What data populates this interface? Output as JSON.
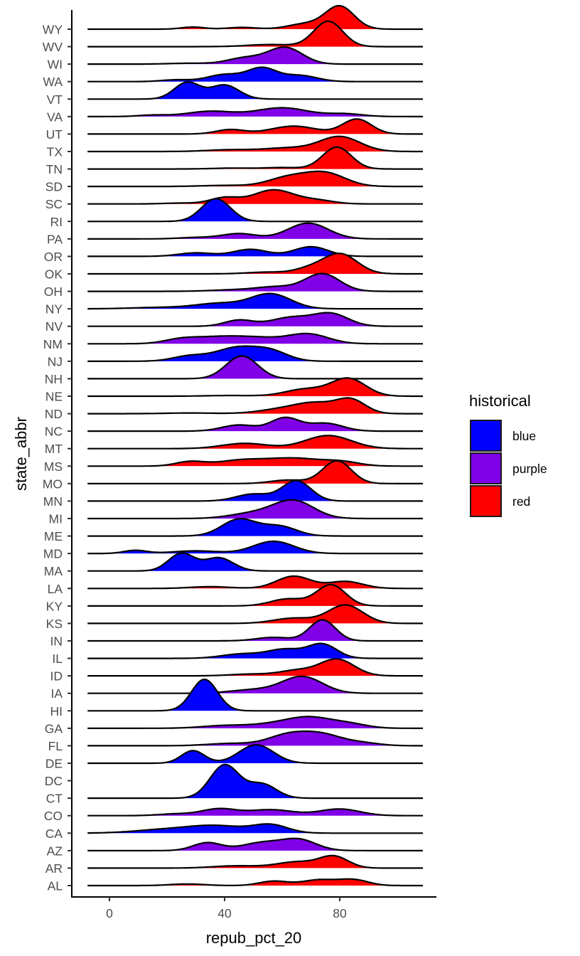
{
  "chart_data": {
    "type": "ridgeline",
    "title": "",
    "xlabel": "repub_pct_20",
    "ylabel": "state_abbr",
    "xlim": [
      -12,
      113
    ],
    "density_range": [
      -7.6,
      108.9
    ],
    "x_ticks": [
      0,
      40,
      80
    ],
    "x_tick_labels": [
      "0",
      "40",
      "80"
    ],
    "grid": false,
    "legend": {
      "title": "historical",
      "position": "right",
      "entries": [
        {
          "label": "blue",
          "color": "#0000FF"
        },
        {
          "label": "purple",
          "color": "#8000E8"
        },
        {
          "label": "red",
          "color": "#FF0000"
        }
      ]
    },
    "categories": [
      "AL",
      "AR",
      "AZ",
      "CA",
      "CO",
      "CT",
      "DC",
      "DE",
      "FL",
      "GA",
      "HI",
      "IA",
      "ID",
      "IL",
      "IN",
      "KS",
      "KY",
      "LA",
      "MA",
      "MD",
      "ME",
      "MI",
      "MN",
      "MO",
      "MS",
      "MT",
      "NC",
      "ND",
      "NE",
      "NH",
      "NJ",
      "NM",
      "NV",
      "NY",
      "OH",
      "OK",
      "OR",
      "PA",
      "RI",
      "SC",
      "SD",
      "TN",
      "TX",
      "UT",
      "VA",
      "VT",
      "WA",
      "WI",
      "WV",
      "WY"
    ],
    "series_note": "Each state's ridge is a density of repub_pct_20, described as a sum of Gaussian components [center, sd, height]; height is in units of one row spacing.",
    "series": [
      {
        "state": "AL",
        "historical": "red",
        "components": [
          [
            27,
            6,
            0.09
          ],
          [
            57,
            5,
            0.25
          ],
          [
            73,
            6,
            0.33
          ],
          [
            85,
            5,
            0.32
          ]
        ]
      },
      {
        "state": "AR",
        "historical": "red",
        "components": [
          [
            44,
            8,
            0.13
          ],
          [
            65,
            7,
            0.35
          ],
          [
            78,
            5,
            0.65
          ]
        ]
      },
      {
        "state": "AZ",
        "historical": "purple",
        "components": [
          [
            34,
            5,
            0.45
          ],
          [
            53,
            7,
            0.45
          ],
          [
            66,
            6,
            0.6
          ]
        ]
      },
      {
        "state": "CA",
        "historical": "blue",
        "components": [
          [
            18,
            10,
            0.18
          ],
          [
            37,
            10,
            0.42
          ],
          [
            56,
            6,
            0.45
          ]
        ]
      },
      {
        "state": "CO",
        "historical": "purple",
        "components": [
          [
            23,
            6,
            0.1
          ],
          [
            38,
            6,
            0.38
          ],
          [
            56,
            8,
            0.34
          ],
          [
            80,
            7,
            0.38
          ]
        ]
      },
      {
        "state": "CT",
        "historical": "blue",
        "components": [
          [
            40,
            5,
            1.9
          ],
          [
            53,
            5,
            0.8
          ]
        ]
      },
      {
        "state": "DC",
        "historical": "blue",
        "components": []
      },
      {
        "state": "DE",
        "historical": "blue",
        "components": [
          [
            29,
            4,
            0.72
          ],
          [
            51,
            6,
            1.05
          ]
        ]
      },
      {
        "state": "FL",
        "historical": "purple",
        "components": [
          [
            42,
            8,
            0.13
          ],
          [
            62,
            7,
            0.6
          ],
          [
            74,
            7,
            0.6
          ],
          [
            88,
            6,
            0.15
          ]
        ]
      },
      {
        "state": "GA",
        "historical": "purple",
        "components": [
          [
            40,
            8,
            0.15
          ],
          [
            57,
            8,
            0.2
          ],
          [
            70,
            8,
            0.6
          ],
          [
            84,
            6,
            0.2
          ]
        ]
      },
      {
        "state": "HI",
        "historical": "blue",
        "components": [
          [
            33,
            4.5,
            1.8
          ]
        ]
      },
      {
        "state": "IA",
        "historical": "purple",
        "components": [
          [
            50,
            8,
            0.2
          ],
          [
            67,
            7,
            0.95
          ]
        ]
      },
      {
        "state": "ID",
        "historical": "red",
        "components": [
          [
            49,
            7,
            0.1
          ],
          [
            65,
            6,
            0.3
          ],
          [
            79,
            6,
            0.95
          ]
        ]
      },
      {
        "state": "IL",
        "historical": "blue",
        "components": [
          [
            46,
            7,
            0.25
          ],
          [
            61,
            6,
            0.5
          ],
          [
            74,
            5,
            0.8
          ]
        ]
      },
      {
        "state": "IN",
        "historical": "purple",
        "components": [
          [
            57,
            6,
            0.2
          ],
          [
            74,
            4.5,
            1.2
          ]
        ]
      },
      {
        "state": "KS",
        "historical": "red",
        "components": [
          [
            64,
            7,
            0.3
          ],
          [
            82,
            6,
            1.05
          ]
        ]
      },
      {
        "state": "KY",
        "historical": "red",
        "components": [
          [
            62,
            6,
            0.4
          ],
          [
            77,
            5,
            1.2
          ]
        ]
      },
      {
        "state": "LA",
        "historical": "red",
        "components": [
          [
            35,
            7,
            0.1
          ],
          [
            64,
            6,
            0.7
          ],
          [
            82,
            6,
            0.4
          ]
        ]
      },
      {
        "state": "MA",
        "historical": "blue",
        "components": [
          [
            25,
            4.5,
            1.0
          ],
          [
            38,
            5,
            0.75
          ]
        ]
      },
      {
        "state": "MD",
        "historical": "blue",
        "components": [
          [
            9,
            4,
            0.18
          ],
          [
            30,
            8,
            0.15
          ],
          [
            57,
            7,
            0.7
          ]
        ]
      },
      {
        "state": "ME",
        "historical": "blue",
        "components": [
          [
            45,
            6,
            0.95
          ],
          [
            59,
            6,
            0.55
          ]
        ]
      },
      {
        "state": "MI",
        "historical": "purple",
        "components": [
          [
            50,
            8,
            0.3
          ],
          [
            64,
            7,
            1.0
          ]
        ]
      },
      {
        "state": "MN",
        "historical": "blue",
        "components": [
          [
            50,
            6,
            0.4
          ],
          [
            65,
            5,
            1.15
          ]
        ]
      },
      {
        "state": "MO",
        "historical": "red",
        "components": [
          [
            62,
            6,
            0.2
          ],
          [
            79,
            5,
            1.3
          ]
        ]
      },
      {
        "state": "MS",
        "historical": "red",
        "components": [
          [
            28,
            5,
            0.25
          ],
          [
            45,
            8,
            0.3
          ],
          [
            64,
            10,
            0.45
          ],
          [
            81,
            6,
            0.2
          ]
        ]
      },
      {
        "state": "MT",
        "historical": "red",
        "components": [
          [
            47,
            8,
            0.3
          ],
          [
            76,
            8,
            0.75
          ]
        ]
      },
      {
        "state": "NC",
        "historical": "purple",
        "components": [
          [
            45,
            6,
            0.35
          ],
          [
            61,
            5,
            0.75
          ],
          [
            75,
            6,
            0.45
          ]
        ]
      },
      {
        "state": "ND",
        "historical": "red",
        "components": [
          [
            28,
            8,
            0.04
          ],
          [
            60,
            8,
            0.25
          ],
          [
            72,
            7,
            0.55
          ],
          [
            84,
            5,
            0.75
          ]
        ]
      },
      {
        "state": "NE",
        "historical": "red",
        "components": [
          [
            42,
            8,
            0.04
          ],
          [
            68,
            7,
            0.4
          ],
          [
            83,
            6,
            1.0
          ]
        ]
      },
      {
        "state": "NH",
        "historical": "purple",
        "components": [
          [
            46,
            5.5,
            1.3
          ]
        ]
      },
      {
        "state": "NJ",
        "historical": "blue",
        "components": [
          [
            28,
            6,
            0.3
          ],
          [
            44,
            7,
            0.75
          ],
          [
            56,
            6,
            0.55
          ]
        ]
      },
      {
        "state": "NM",
        "historical": "purple",
        "components": [
          [
            25,
            6,
            0.25
          ],
          [
            38,
            8,
            0.35
          ],
          [
            52,
            8,
            0.3
          ],
          [
            69,
            7,
            0.55
          ]
        ]
      },
      {
        "state": "NV",
        "historical": "purple",
        "components": [
          [
            45,
            5,
            0.35
          ],
          [
            63,
            7,
            0.5
          ],
          [
            77,
            6,
            0.7
          ]
        ]
      },
      {
        "state": "NY",
        "historical": "blue",
        "components": [
          [
            18,
            10,
            0.08
          ],
          [
            38,
            8,
            0.3
          ],
          [
            56,
            7,
            0.85
          ]
        ]
      },
      {
        "state": "OH",
        "historical": "purple",
        "components": [
          [
            43,
            8,
            0.08
          ],
          [
            58,
            7,
            0.25
          ],
          [
            74,
            6,
            1.0
          ]
        ]
      },
      {
        "state": "OK",
        "historical": "red",
        "components": [
          [
            55,
            7,
            0.1
          ],
          [
            69,
            5,
            0.25
          ],
          [
            80,
            6,
            1.15
          ]
        ]
      },
      {
        "state": "OR",
        "historical": "blue",
        "components": [
          [
            30,
            6,
            0.2
          ],
          [
            49,
            6,
            0.4
          ],
          [
            70,
            6,
            0.55
          ]
        ]
      },
      {
        "state": "PA",
        "historical": "purple",
        "components": [
          [
            30,
            6,
            0.08
          ],
          [
            45,
            6,
            0.3
          ],
          [
            69,
            7,
            0.9
          ]
        ]
      },
      {
        "state": "RI",
        "historical": "blue",
        "components": [
          [
            37,
            5,
            1.3
          ]
        ]
      },
      {
        "state": "SC",
        "historical": "red",
        "components": [
          [
            25,
            6,
            0.05
          ],
          [
            40,
            5,
            0.35
          ],
          [
            57,
            7,
            0.8
          ],
          [
            72,
            6,
            0.2
          ]
        ]
      },
      {
        "state": "SD",
        "historical": "red",
        "components": [
          [
            40,
            8,
            0.06
          ],
          [
            62,
            7,
            0.5
          ],
          [
            75,
            7,
            0.75
          ]
        ]
      },
      {
        "state": "TN",
        "historical": "red",
        "components": [
          [
            43,
            7,
            0.05
          ],
          [
            60,
            6,
            0.08
          ],
          [
            79,
            5,
            1.25
          ]
        ]
      },
      {
        "state": "TX",
        "historical": "red",
        "components": [
          [
            42,
            8,
            0.1
          ],
          [
            62,
            8,
            0.2
          ],
          [
            80,
            7,
            0.85
          ]
        ]
      },
      {
        "state": "UT",
        "historical": "red",
        "components": [
          [
            42,
            5,
            0.25
          ],
          [
            64,
            8,
            0.45
          ],
          [
            86,
            5,
            0.85
          ]
        ]
      },
      {
        "state": "VA",
        "historical": "purple",
        "components": [
          [
            15,
            5,
            0.08
          ],
          [
            35,
            8,
            0.3
          ],
          [
            60,
            9,
            0.5
          ],
          [
            82,
            6,
            0.15
          ]
        ]
      },
      {
        "state": "VT",
        "historical": "blue",
        "components": [
          [
            27,
            4.5,
            0.95
          ],
          [
            40,
            5,
            0.8
          ]
        ]
      },
      {
        "state": "WA",
        "historical": "blue",
        "components": [
          [
            23,
            5,
            0.1
          ],
          [
            40,
            6,
            0.4
          ],
          [
            53,
            5,
            0.75
          ],
          [
            66,
            6,
            0.35
          ]
        ]
      },
      {
        "state": "WI",
        "historical": "purple",
        "components": [
          [
            28,
            7,
            0.05
          ],
          [
            47,
            6,
            0.35
          ],
          [
            61,
            6,
            0.95
          ]
        ]
      },
      {
        "state": "WV",
        "historical": "red",
        "components": [
          [
            56,
            8,
            0.12
          ],
          [
            76,
            5,
            1.45
          ]
        ]
      },
      {
        "state": "WY",
        "historical": "red",
        "components": [
          [
            29,
            4,
            0.12
          ],
          [
            46,
            5,
            0.1
          ],
          [
            68,
            6,
            0.3
          ],
          [
            80,
            5,
            1.3
          ]
        ]
      }
    ]
  }
}
